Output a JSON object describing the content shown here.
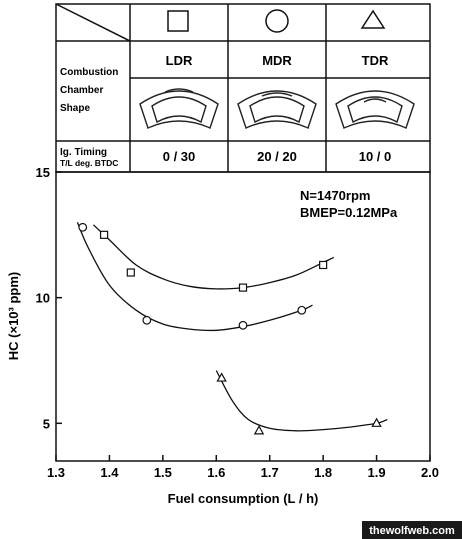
{
  "table": {
    "row_labels": {
      "chamber": [
        "Combustion",
        "Chamber",
        "Shape"
      ],
      "timing": [
        "Ig. Timing",
        "T/L deg. BTDC"
      ]
    },
    "columns": [
      {
        "marker": "square",
        "name": "LDR",
        "timing": "0 / 30"
      },
      {
        "marker": "circle",
        "name": "MDR",
        "timing": "20 / 20"
      },
      {
        "marker": "triangle",
        "name": "TDR",
        "timing": "10 / 0"
      }
    ]
  },
  "annotations": {
    "speed": "N=1470rpm",
    "load": "BMEP=0.12MPa"
  },
  "watermark": "thewolfweb.com",
  "chart_data": {
    "type": "scatter",
    "xlabel": "Fuel consumption (L / h)",
    "ylabel": "HC (×10³ ppm)",
    "xlim": [
      1.3,
      2.0
    ],
    "ylim": [
      3.5,
      15
    ],
    "x_ticks": [
      "1.3",
      "1.4",
      "1.5",
      "1.6",
      "1.7",
      "1.8",
      "1.9",
      "2.0"
    ],
    "y_ticks": [
      {
        "value": 15,
        "label": "15"
      },
      {
        "value": 10,
        "label": "10"
      },
      {
        "value": 5,
        "label": "5"
      }
    ],
    "grid": false,
    "series": [
      {
        "marker": "square",
        "points": [
          [
            1.39,
            12.5
          ],
          [
            1.44,
            11.0
          ],
          [
            1.65,
            10.4
          ],
          [
            1.8,
            11.3
          ]
        ],
        "curve": [
          [
            1.37,
            12.9
          ],
          [
            1.4,
            12.3
          ],
          [
            1.45,
            11.3
          ],
          [
            1.5,
            10.75
          ],
          [
            1.55,
            10.45
          ],
          [
            1.6,
            10.35
          ],
          [
            1.65,
            10.4
          ],
          [
            1.7,
            10.6
          ],
          [
            1.75,
            10.9
          ],
          [
            1.8,
            11.4
          ],
          [
            1.82,
            11.6
          ]
        ]
      },
      {
        "marker": "circle",
        "points": [
          [
            1.35,
            12.8
          ],
          [
            1.47,
            9.1
          ],
          [
            1.65,
            8.9
          ],
          [
            1.76,
            9.5
          ]
        ],
        "curve": [
          [
            1.34,
            13.0
          ],
          [
            1.36,
            12.0
          ],
          [
            1.4,
            10.5
          ],
          [
            1.45,
            9.5
          ],
          [
            1.5,
            8.95
          ],
          [
            1.55,
            8.75
          ],
          [
            1.6,
            8.7
          ],
          [
            1.65,
            8.85
          ],
          [
            1.7,
            9.1
          ],
          [
            1.76,
            9.5
          ],
          [
            1.78,
            9.7
          ]
        ]
      },
      {
        "marker": "triangle",
        "points": [
          [
            1.61,
            6.8
          ],
          [
            1.68,
            4.7
          ],
          [
            1.9,
            5.0
          ]
        ],
        "curve": [
          [
            1.6,
            7.1
          ],
          [
            1.63,
            5.9
          ],
          [
            1.66,
            5.15
          ],
          [
            1.7,
            4.8
          ],
          [
            1.75,
            4.7
          ],
          [
            1.8,
            4.75
          ],
          [
            1.85,
            4.85
          ],
          [
            1.9,
            5.0
          ],
          [
            1.92,
            5.15
          ]
        ]
      }
    ]
  }
}
